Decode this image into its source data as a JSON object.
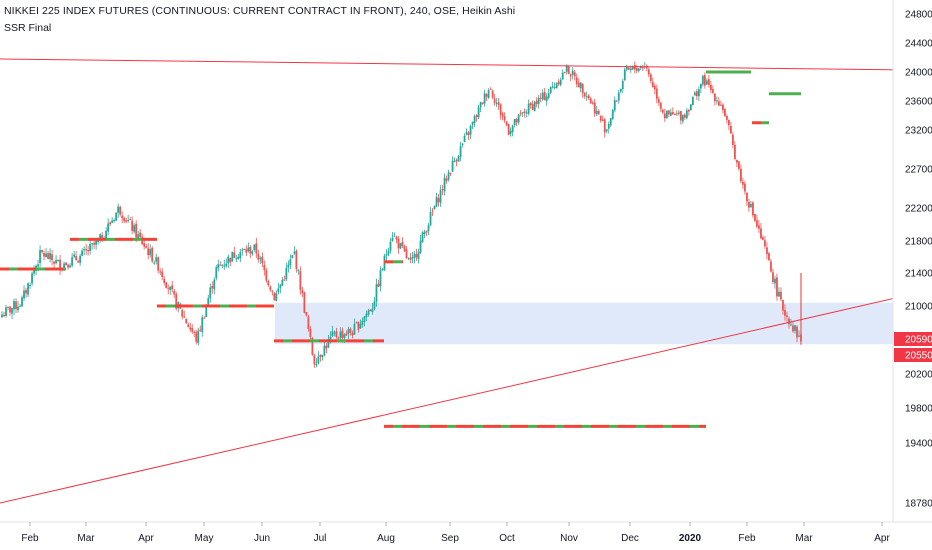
{
  "legend": {
    "title": "NIKKEI 225 INDEX FUTURES (CONTINUOUS: CURRENT CONTRACT IN FRONT), 240, OSE, Heikin Ashi",
    "indicator": "SSR Final"
  },
  "colors": {
    "up": "#26a69a",
    "down": "#ef5350",
    "trend_line": "#f23645",
    "zone_fill": "#dbe7f8",
    "ssr_green": "#4caf50",
    "ssr_red": "#f44336",
    "price_label_bg": "#f23645",
    "axis_text": "#131722",
    "axis_line": "#e0e3eb"
  },
  "chart_data": {
    "type": "candlestick",
    "style": "Heikin Ashi",
    "timeframe": "240",
    "x_ticks": [
      {
        "label": "Feb",
        "bold": false
      },
      {
        "label": "Mar",
        "bold": false
      },
      {
        "label": "Apr",
        "bold": false
      },
      {
        "label": "May",
        "bold": false
      },
      {
        "label": "Jun",
        "bold": false
      },
      {
        "label": "Jul",
        "bold": false
      },
      {
        "label": "Aug",
        "bold": false
      },
      {
        "label": "Sep",
        "bold": false
      },
      {
        "label": "Oct",
        "bold": false
      },
      {
        "label": "Nov",
        "bold": false
      },
      {
        "label": "Dec",
        "bold": false
      },
      {
        "label": "2020",
        "bold": true
      },
      {
        "label": "Feb",
        "bold": false
      },
      {
        "label": "Mar",
        "bold": false
      },
      {
        "label": "Apr",
        "bold": false
      }
    ],
    "y_ticks": [
      "24800",
      "24400",
      "24000",
      "23600",
      "23200",
      "22700",
      "22200",
      "21800",
      "21400",
      "21000",
      "20200",
      "19800",
      "19400",
      "18780"
    ],
    "price_labels": [
      "20590",
      "20550"
    ],
    "price_path": [
      [
        20950,
        20900
      ],
      [
        21000,
        21050
      ],
      [
        21200,
        21650
      ],
      [
        21700,
        21500
      ],
      [
        21150,
        21600
      ],
      [
        21600,
        21800
      ],
      [
        21820,
        22200
      ],
      [
        22300,
        21850
      ],
      [
        21200,
        21500
      ],
      [
        21200,
        21000
      ],
      [
        20900,
        20600
      ],
      [
        20700,
        21450
      ],
      [
        21450,
        21650
      ],
      [
        21550,
        21700
      ],
      [
        21450,
        21100
      ],
      [
        21500,
        21650
      ],
      [
        20950,
        20350
      ],
      [
        20350,
        20650
      ],
      [
        20600,
        20700
      ],
      [
        20650,
        21000
      ],
      [
        21100,
        21900
      ],
      [
        21850,
        21500
      ],
      [
        21300,
        22100
      ],
      [
        22300,
        22700
      ],
      [
        22900,
        23200
      ],
      [
        23500,
        23800
      ],
      [
        23500,
        23200
      ],
      [
        23300,
        23500
      ],
      [
        23600,
        23700
      ],
      [
        23900,
        24050
      ],
      [
        23950,
        23700
      ],
      [
        23500,
        23200
      ],
      [
        23600,
        24000
      ],
      [
        23900,
        24100
      ],
      [
        23700,
        23400
      ],
      [
        23000,
        23400
      ],
      [
        23200,
        23900
      ],
      [
        23800,
        23500
      ],
      [
        23100,
        22500
      ],
      [
        22300,
        21800
      ],
      [
        21600,
        21000
      ],
      [
        20800,
        20590
      ]
    ],
    "support_zone": [
      20550,
      21040
    ],
    "trend_lines": [
      {
        "name": "upper",
        "y_start": 24180,
        "y_end": 24030
      },
      {
        "name": "lower",
        "y_start": 18780,
        "y_end": 21090
      }
    ],
    "ssr_levels": [
      {
        "value": 21450,
        "color": "mixed"
      },
      {
        "value": 21820,
        "color": "mixed"
      },
      {
        "value": 21000,
        "color": "mixed"
      },
      {
        "value": 20590,
        "color": "mixed"
      },
      {
        "value": 21540,
        "color": "mixed"
      },
      {
        "value": 19590,
        "color": "mixed"
      },
      {
        "value": 24000,
        "color": "green"
      },
      {
        "value": 23700,
        "color": "green"
      },
      {
        "value": 23300,
        "color": "mixed"
      }
    ]
  }
}
